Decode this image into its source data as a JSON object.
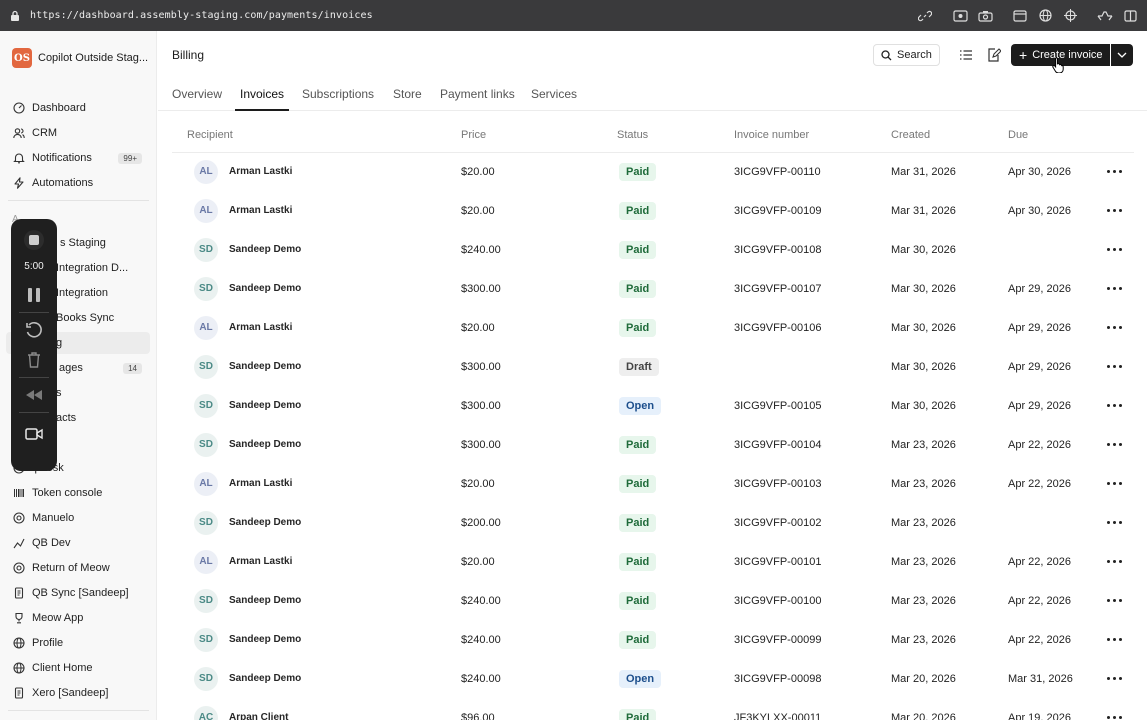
{
  "browser": {
    "url": "https://dashboard.assembly-staging.com/payments/invoices"
  },
  "workspace": {
    "logo": "OS",
    "name": "Copilot Outside Stag..."
  },
  "sidebar": {
    "top": [
      {
        "label": "Dashboard",
        "icon": "dashboard-icon"
      },
      {
        "label": "CRM",
        "icon": "users-icon"
      },
      {
        "label": "Notifications",
        "icon": "bell-icon",
        "badge": "99+"
      },
      {
        "label": "Automations",
        "icon": "bolt-icon"
      }
    ],
    "section": "A",
    "apps": [
      {
        "label": "s Staging"
      },
      {
        "label": "Integration D..."
      },
      {
        "label": "Integration"
      },
      {
        "label": "Books Sync"
      },
      {
        "label": "g"
      },
      {
        "label": "ages",
        "badge": "14"
      },
      {
        "label": "s"
      },
      {
        "label": "acts"
      },
      {
        "label": ""
      },
      {
        "label": "lpdesk"
      },
      {
        "label": "Token console"
      },
      {
        "label": "Manuelo"
      },
      {
        "label": "QB Dev"
      },
      {
        "label": "Return of Meow"
      },
      {
        "label": "QB Sync [Sandeep]"
      },
      {
        "label": "Meow App"
      },
      {
        "label": "Profile"
      },
      {
        "label": "Client Home"
      },
      {
        "label": "Xero [Sandeep]"
      }
    ]
  },
  "recorder": {
    "timer": "5:00"
  },
  "header": {
    "title": "Billing",
    "search_label": "Search",
    "create_label": "Create invoice"
  },
  "tabs": [
    "Overview",
    "Invoices",
    "Subscriptions",
    "Store",
    "Payment links",
    "Services"
  ],
  "table": {
    "columns": [
      "Recipient",
      "Price",
      "Status",
      "Invoice number",
      "Created",
      "Due"
    ],
    "rows": [
      {
        "initials": "AL",
        "name": "Arman Lastki",
        "price": "$20.00",
        "status": "Paid",
        "number": "3ICG9VFP-00110",
        "created": "Mar 31, 2026",
        "due": "Apr 30, 2026"
      },
      {
        "initials": "AL",
        "name": "Arman Lastki",
        "price": "$20.00",
        "status": "Paid",
        "number": "3ICG9VFP-00109",
        "created": "Mar 31, 2026",
        "due": "Apr 30, 2026"
      },
      {
        "initials": "SD",
        "name": "Sandeep Demo",
        "price": "$240.00",
        "status": "Paid",
        "number": "3ICG9VFP-00108",
        "created": "Mar 30, 2026",
        "due": ""
      },
      {
        "initials": "SD",
        "name": "Sandeep Demo",
        "price": "$300.00",
        "status": "Paid",
        "number": "3ICG9VFP-00107",
        "created": "Mar 30, 2026",
        "due": "Apr 29, 2026"
      },
      {
        "initials": "AL",
        "name": "Arman Lastki",
        "price": "$20.00",
        "status": "Paid",
        "number": "3ICG9VFP-00106",
        "created": "Mar 30, 2026",
        "due": "Apr 29, 2026"
      },
      {
        "initials": "SD",
        "name": "Sandeep Demo",
        "price": "$300.00",
        "status": "Draft",
        "number": "",
        "created": "Mar 30, 2026",
        "due": "Apr 29, 2026"
      },
      {
        "initials": "SD",
        "name": "Sandeep Demo",
        "price": "$300.00",
        "status": "Open",
        "number": "3ICG9VFP-00105",
        "created": "Mar 30, 2026",
        "due": "Apr 29, 2026"
      },
      {
        "initials": "SD",
        "name": "Sandeep Demo",
        "price": "$300.00",
        "status": "Paid",
        "number": "3ICG9VFP-00104",
        "created": "Mar 23, 2026",
        "due": "Apr 22, 2026"
      },
      {
        "initials": "AL",
        "name": "Arman Lastki",
        "price": "$20.00",
        "status": "Paid",
        "number": "3ICG9VFP-00103",
        "created": "Mar 23, 2026",
        "due": "Apr 22, 2026"
      },
      {
        "initials": "SD",
        "name": "Sandeep Demo",
        "price": "$200.00",
        "status": "Paid",
        "number": "3ICG9VFP-00102",
        "created": "Mar 23, 2026",
        "due": ""
      },
      {
        "initials": "AL",
        "name": "Arman Lastki",
        "price": "$20.00",
        "status": "Paid",
        "number": "3ICG9VFP-00101",
        "created": "Mar 23, 2026",
        "due": "Apr 22, 2026"
      },
      {
        "initials": "SD",
        "name": "Sandeep Demo",
        "price": "$240.00",
        "status": "Paid",
        "number": "3ICG9VFP-00100",
        "created": "Mar 23, 2026",
        "due": "Apr 22, 2026"
      },
      {
        "initials": "SD",
        "name": "Sandeep Demo",
        "price": "$240.00",
        "status": "Paid",
        "number": "3ICG9VFP-00099",
        "created": "Mar 23, 2026",
        "due": "Apr 22, 2026"
      },
      {
        "initials": "SD",
        "name": "Sandeep Demo",
        "price": "$240.00",
        "status": "Open",
        "number": "3ICG9VFP-00098",
        "created": "Mar 20, 2026",
        "due": "Mar 31, 2026"
      },
      {
        "initials": "AC",
        "name": "Arpan Client",
        "price": "$96.00",
        "status": "Paid",
        "number": "JF3KYLXX-00011",
        "created": "Mar 20, 2026",
        "due": "Apr 19, 2026"
      }
    ]
  }
}
